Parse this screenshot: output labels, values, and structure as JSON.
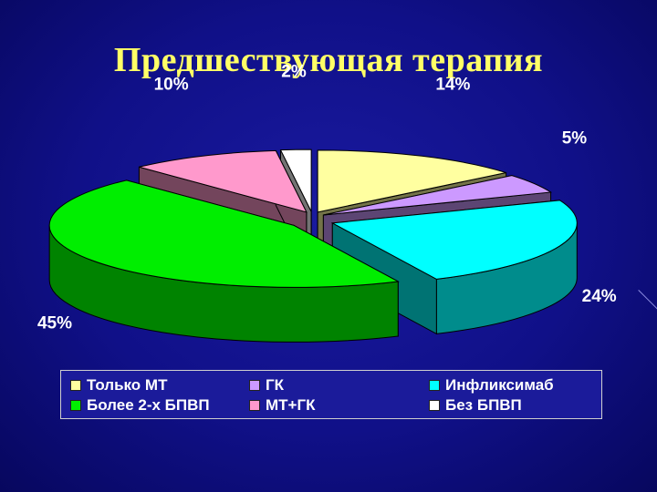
{
  "chart_data": {
    "type": "pie",
    "title": "Предшествующая терапия",
    "slices": [
      {
        "label": "Только МТ",
        "value": 14,
        "value_label": "14%",
        "color": "#ffffa0"
      },
      {
        "label": "ГК",
        "value": 5,
        "value_label": "5%",
        "color": "#cc99ff"
      },
      {
        "label": "Инфликсимаб",
        "value": 24,
        "value_label": "24%",
        "color": "#00ffff"
      },
      {
        "label": "Более 2-х БПВП",
        "value": 45,
        "value_label": "45%",
        "color": "#00ee00"
      },
      {
        "label": "МТ+ГК",
        "value": 10,
        "value_label": "10%",
        "color": "#ff99cc"
      },
      {
        "label": "Без БПВП",
        "value": 2,
        "value_label": "2%",
        "color": "#ffffff"
      }
    ],
    "legend_position": "bottom",
    "exploded": true,
    "three_d": true
  },
  "legend": [
    {
      "label": "Только МТ",
      "color": "#ffffa0"
    },
    {
      "label": "ГК",
      "color": "#cc99ff"
    },
    {
      "label": "Инфликсимаб",
      "color": "#00ffff"
    },
    {
      "label": "Более 2-х БПВП",
      "color": "#00ee00"
    },
    {
      "label": "МТ+ГК",
      "color": "#ff99cc"
    },
    {
      "label": "Без БПВП",
      "color": "#ffffff"
    }
  ]
}
